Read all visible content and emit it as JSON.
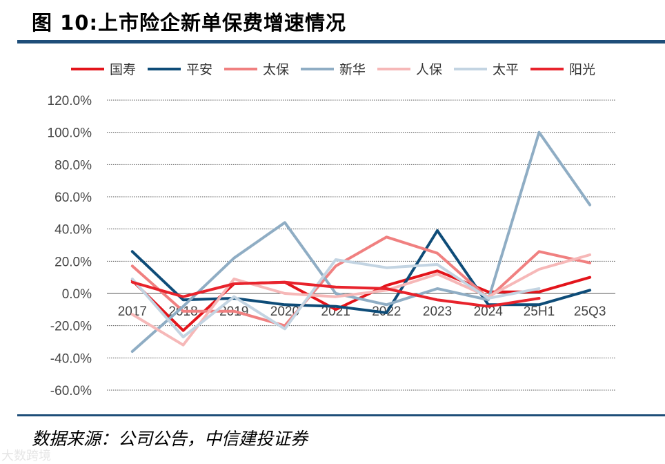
{
  "header": {
    "title": "图 10:上市险企新单保费增速情况"
  },
  "footer": {
    "source": "数据来源：公司公告，中信建投证券",
    "watermark": "大数跨境"
  },
  "chart_data": {
    "type": "line",
    "title": "图 10:上市险企新单保费增速情况",
    "xlabel": "",
    "ylabel": "",
    "ylim": [
      -60,
      120
    ],
    "yticks": [
      120,
      100,
      80,
      60,
      40,
      20,
      0,
      -20,
      -40,
      -60
    ],
    "ytick_labels": [
      "120.0%",
      "100.0%",
      "80.0%",
      "60.0%",
      "40.0%",
      "20.0%",
      "0.0%",
      "-20.0%",
      "-40.0%",
      "-60.0%"
    ],
    "categories": [
      "2017",
      "2018",
      "2019",
      "2020",
      "2021",
      "2022",
      "2023",
      "2024",
      "25H1",
      "25Q3"
    ],
    "legend_position": "top",
    "grid": true,
    "series": [
      {
        "name": "国寿",
        "color": "#e3141b",
        "values": [
          8,
          -23,
          6,
          7,
          -10,
          5,
          14,
          1,
          1,
          10
        ]
      },
      {
        "name": "平安",
        "color": "#0e4c78",
        "values": [
          26,
          -4,
          -3,
          -7,
          -8,
          -12,
          39,
          -7,
          -7,
          2
        ]
      },
      {
        "name": "太保",
        "color": "#f08080",
        "values": [
          17,
          -11,
          -11,
          -20,
          17,
          35,
          25,
          -3,
          26,
          19
        ]
      },
      {
        "name": "新华",
        "color": "#8fadc4",
        "values": [
          -36,
          -8,
          22,
          44,
          0,
          -7,
          3,
          -4,
          100,
          55
        ]
      },
      {
        "name": "人保",
        "color": "#f6b8b8",
        "values": [
          -13,
          -32,
          9,
          0,
          -2,
          2,
          12,
          -2,
          15,
          24
        ]
      },
      {
        "name": "太平",
        "color": "#c3d4e2",
        "values": [
          9,
          -27,
          -2,
          -22,
          21,
          16,
          18,
          -3,
          3,
          null
        ]
      },
      {
        "name": "阳光",
        "color": "#e8232c",
        "values": [
          7,
          -2,
          6,
          7,
          4,
          3,
          -4,
          -8,
          -3,
          null
        ]
      }
    ]
  }
}
